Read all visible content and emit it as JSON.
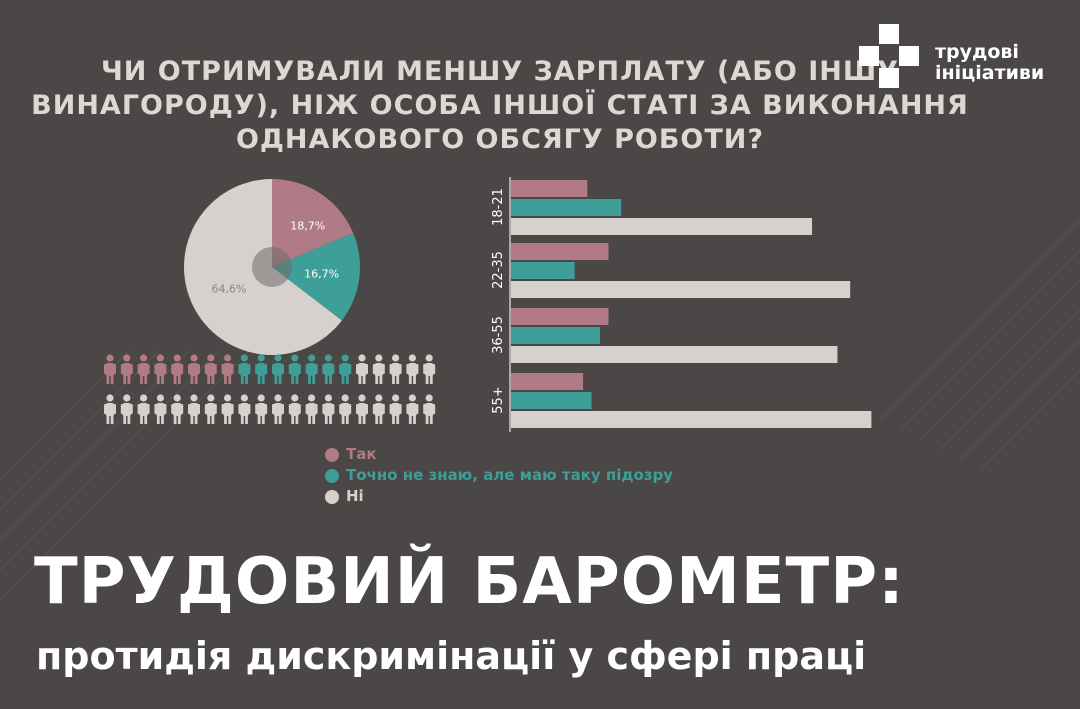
{
  "question": {
    "lines": [
      "ЧИ ОТРИМУВАЛИ МЕНШУ ЗАРПЛАТУ (АБО ІНШУ",
      "ВИНАГОРОДУ), НІЖ ОСОБА ІНШОЇ СТАТІ ЗА ВИКОНАННЯ",
      "ОДНАКОВОГО ОБСЯГУ РОБОТИ?"
    ]
  },
  "logo": {
    "line1": "трудові",
    "line2": "ініціативи"
  },
  "colors": {
    "background": "#4a4746",
    "yes": "#b07a86",
    "suspect": "#3e9e98",
    "no": "#d6d1cc",
    "text_light": "#dcd8d3"
  },
  "legend": [
    {
      "label": "Так",
      "color": "#b07a86"
    },
    {
      "label": "Точно не знаю, але маю таку підозру",
      "color": "#3e9e98"
    },
    {
      "label": "Ні",
      "color": "#d6d1cc"
    }
  ],
  "chart_data": [
    {
      "type": "pie",
      "slices": [
        {
          "label": "Так",
          "value": 18.7,
          "display": "18,7%"
        },
        {
          "label": "Точно не знаю, але маю таку підозру",
          "value": 16.7,
          "display": "16,7%"
        },
        {
          "label": "Ні",
          "value": 64.6,
          "display": "64,6%"
        }
      ]
    },
    {
      "type": "pictogram",
      "total": 40,
      "counts": {
        "Так": 8,
        "Точно не знаю, але маю таку підозру": 7,
        "Ні": 25
      }
    },
    {
      "type": "bar",
      "orientation": "horizontal",
      "categories": [
        "18-21",
        "22-35",
        "36-55",
        "55+"
      ],
      "series": [
        {
          "name": "Так",
          "values": [
            18,
            23,
            23,
            17
          ]
        },
        {
          "name": "Точно не знаю, але маю таку підозру",
          "values": [
            26,
            15,
            21,
            19
          ]
        },
        {
          "name": "Ні",
          "values": [
            71,
            80,
            77,
            85
          ]
        }
      ],
      "xlim": [
        0,
        100
      ]
    }
  ],
  "title": {
    "main": "ТРУДОВИЙ БАРОМЕТР:",
    "subtitle": "протидія дискримінації у сфері праці"
  }
}
